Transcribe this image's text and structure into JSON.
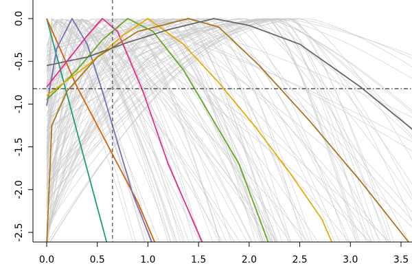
{
  "chart_data": {
    "type": "line",
    "title": "",
    "xlabel": "",
    "ylabel": "",
    "xlim": [
      -0.05,
      3.65
    ],
    "ylim": [
      -2.6,
      0.15
    ],
    "x_ticks": [
      0.0,
      0.5,
      1.0,
      1.5,
      2.0,
      2.5,
      3.0,
      3.5
    ],
    "x_tick_labels": [
      "0.0",
      "0.5",
      "1.0",
      "1.5",
      "2.0",
      "2.5",
      "3.0",
      "3.5"
    ],
    "y_ticks": [
      0.0,
      -0.5,
      -1.0,
      -1.5,
      -2.0,
      -2.5
    ],
    "y_tick_labels": [
      "0.0",
      "-0.5",
      "-1.0",
      "-1.5",
      "-2.0",
      "-2.5"
    ],
    "grid": false,
    "legend": "none",
    "reference_lines": {
      "vertical": {
        "x": 0.65,
        "style": "dashed",
        "color": "#555555"
      },
      "horizontal": {
        "y": -0.82,
        "style": "dash-dot",
        "color": "#000000"
      }
    },
    "background_curves": {
      "color": "#c8c8c8",
      "count": 110,
      "description_shape": "concave curves peaking at 0 across x"
    },
    "series": [
      {
        "color": "#1b9e77",
        "x": [
          0.0,
          0.6
        ],
        "y": [
          0.0,
          -2.65
        ]
      },
      {
        "color": "#d95f02",
        "x": [
          0.0,
          0.15,
          0.3,
          0.5,
          0.7,
          0.9,
          1.08
        ],
        "y": [
          0.0,
          -0.4,
          -0.8,
          -1.25,
          -1.7,
          -2.15,
          -2.65
        ]
      },
      {
        "color": "#7570b3",
        "x": [
          0.0,
          0.1,
          0.25,
          0.4,
          0.55,
          0.7,
          0.85,
          1.05
        ],
        "y": [
          -1.02,
          -0.35,
          0.0,
          -0.3,
          -0.85,
          -1.45,
          -2.05,
          -2.65
        ]
      },
      {
        "color": "#e7298a",
        "x": [
          0.0,
          0.2,
          0.4,
          0.55,
          0.7,
          0.95,
          1.2,
          1.55
        ],
        "y": [
          -0.8,
          -0.5,
          -0.2,
          0.0,
          -0.15,
          -0.85,
          -1.7,
          -2.65
        ]
      },
      {
        "color": "#66a61e",
        "x": [
          0.0,
          0.3,
          0.55,
          0.8,
          1.05,
          1.35,
          1.6,
          1.9,
          2.2
        ],
        "y": [
          -0.95,
          -0.6,
          -0.25,
          0.0,
          -0.15,
          -0.6,
          -1.1,
          -1.7,
          -2.65
        ]
      },
      {
        "color": "#e6ab02",
        "x": [
          0.0,
          0.4,
          0.75,
          1.0,
          1.35,
          1.7,
          2.05,
          2.4,
          2.72,
          2.83
        ],
        "y": [
          -0.9,
          -0.55,
          -0.2,
          0.0,
          -0.3,
          -0.75,
          -1.25,
          -1.8,
          -2.35,
          -2.65
        ]
      },
      {
        "color": "#a6761d",
        "x": [
          0.0,
          0.05,
          0.2,
          0.5,
          0.9,
          1.4,
          1.7,
          2.1,
          2.6,
          3.1,
          3.6
        ],
        "y": [
          -2.65,
          -1.25,
          -0.85,
          -0.45,
          -0.15,
          0.0,
          -0.1,
          -0.55,
          -1.2,
          -1.9,
          -2.65
        ]
      },
      {
        "color": "#666666",
        "x": [
          0.0,
          0.4,
          0.8,
          1.2,
          1.65,
          2.0,
          2.5,
          2.8,
          3.1,
          3.65
        ],
        "y": [
          -0.55,
          -0.45,
          -0.28,
          -0.13,
          0.0,
          -0.08,
          -0.3,
          -0.55,
          -0.8,
          -1.33
        ]
      }
    ]
  }
}
